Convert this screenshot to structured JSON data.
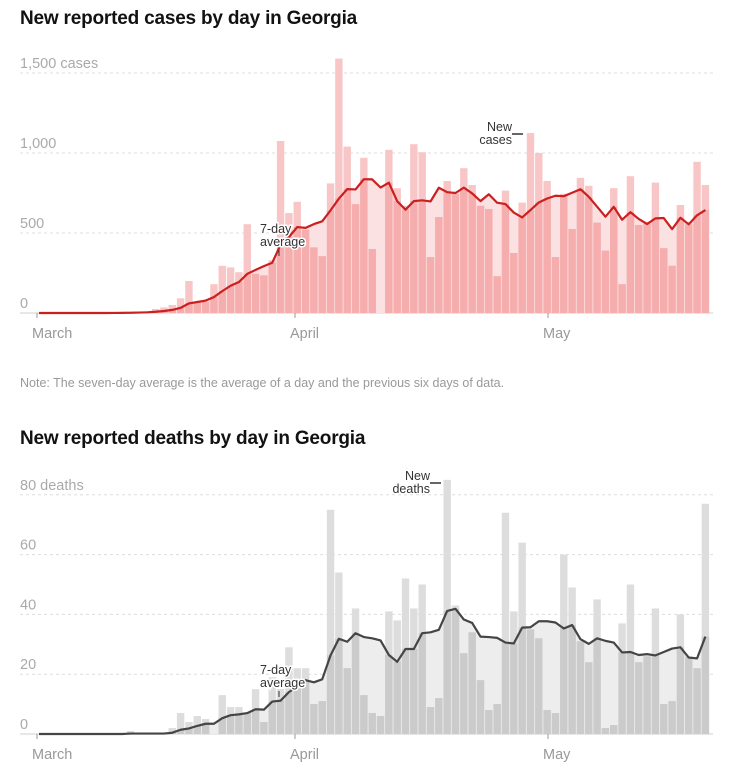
{
  "note": "Note: The seven-day average is the average of a day and the previous six days of data.",
  "colors": {
    "cases_bar": "#f8c6c6",
    "cases_bar_below": "#f4aaaa",
    "cases_area": "#fbe1e1",
    "cases_line": "#cc1f1f",
    "deaths_bar": "#dddddd",
    "deaths_bar_below": "#c9c9c9",
    "deaths_area": "#ededed",
    "deaths_line": "#454545",
    "grid": "#dddddd"
  },
  "chart_data": [
    {
      "type": "bar",
      "title": "New reported cases by day in Georgia",
      "xlabel": "",
      "ylabel": "",
      "start_date": "March 1",
      "x_ticks": [
        {
          "label": "March",
          "day_index": 0
        },
        {
          "label": "April",
          "day_index": 31
        },
        {
          "label": "May",
          "day_index": 61
        }
      ],
      "y_ticks": [
        {
          "value": 0,
          "label": "0"
        },
        {
          "value": 500,
          "label": "500"
        },
        {
          "value": 1000,
          "label": "1,000"
        },
        {
          "value": 1500,
          "label": "1,500 cases"
        }
      ],
      "ylim": [
        0,
        1600
      ],
      "grid": true,
      "annotations": {
        "bars": [
          "New",
          "cases"
        ],
        "line": [
          "7-day",
          "average"
        ]
      },
      "series": [
        {
          "name": "New cases",
          "kind": "bar",
          "values": [
            0,
            0,
            0,
            0,
            0,
            0,
            0,
            0,
            1,
            2,
            3,
            5,
            8,
            10,
            25,
            35,
            50,
            92,
            200,
            70,
            70,
            180,
            295,
            285,
            255,
            555,
            245,
            235,
            330,
            1075,
            625,
            695,
            520,
            410,
            355,
            810,
            1590,
            1040,
            680,
            970,
            400,
            0,
            1020,
            780,
            670,
            1055,
            1005,
            350,
            600,
            825,
            745,
            905,
            800,
            670,
            650,
            230,
            765,
            375,
            690,
            1125,
            1000,
            825,
            350,
            745,
            525,
            845,
            795,
            565,
            390,
            780,
            180,
            855,
            550,
            570,
            815,
            405,
            295,
            675,
            570,
            945,
            800
          ]
        },
        {
          "name": "7-day average",
          "kind": "line",
          "window": 7
        }
      ]
    },
    {
      "type": "bar",
      "title": "New reported deaths by day in Georgia",
      "xlabel": "",
      "ylabel": "",
      "start_date": "March 1",
      "x_ticks": [
        {
          "label": "March",
          "day_index": 0
        },
        {
          "label": "April",
          "day_index": 31
        },
        {
          "label": "May",
          "day_index": 61
        }
      ],
      "y_ticks": [
        {
          "value": 0,
          "label": "0"
        },
        {
          "value": 20,
          "label": "20"
        },
        {
          "value": 40,
          "label": "40"
        },
        {
          "value": 60,
          "label": "60"
        },
        {
          "value": 80,
          "label": "80 deaths"
        }
      ],
      "ylim": [
        0,
        85
      ],
      "grid": true,
      "annotations": {
        "bars": [
          "New",
          "deaths"
        ],
        "line": [
          "7-day",
          "average"
        ]
      },
      "series": [
        {
          "name": "New deaths",
          "kind": "bar",
          "values": [
            0,
            0,
            0,
            0,
            0,
            0,
            0,
            0,
            0,
            0,
            0,
            1,
            0,
            0,
            0,
            0,
            2,
            7,
            4,
            6,
            5,
            0,
            13,
            9,
            9,
            7,
            15,
            4,
            19,
            15,
            29,
            22,
            22,
            10,
            11,
            75,
            54,
            22,
            42,
            13,
            7,
            6,
            41,
            38,
            52,
            42,
            50,
            9,
            12,
            85,
            43,
            27,
            34,
            18,
            8,
            10,
            74,
            41,
            64,
            35,
            32,
            8,
            7,
            60,
            49,
            31,
            24,
            45,
            2,
            3,
            37,
            50,
            24,
            26,
            42,
            10,
            11,
            40,
            26,
            22,
            77
          ]
        },
        {
          "name": "7-day average",
          "kind": "line",
          "window": 7
        }
      ]
    }
  ]
}
